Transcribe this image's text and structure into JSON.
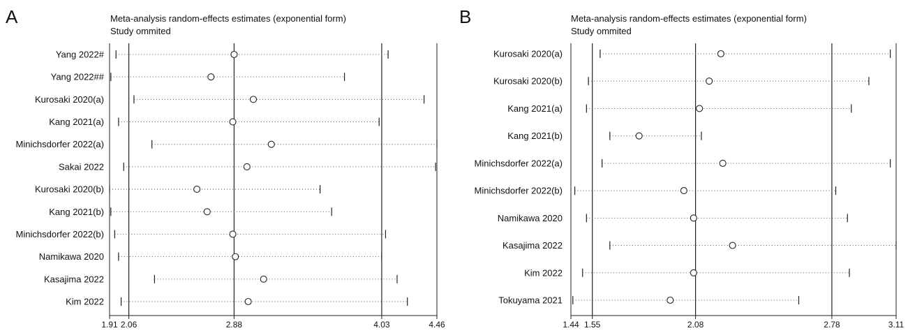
{
  "chart_data": [
    {
      "type": "scatter",
      "panel": "A",
      "title": "Meta-analysis random-effects estimates (exponential form)",
      "subtitle": "Study ommited",
      "ticks": [
        {
          "value": 1.91,
          "label": "1.91"
        },
        {
          "value": 2.06,
          "label": "2.06"
        },
        {
          "value": 2.88,
          "label": "2.88"
        },
        {
          "value": 4.03,
          "label": "4.03"
        },
        {
          "value": 4.46,
          "label": "4.46"
        }
      ],
      "reference_lines": [
        2.06,
        2.88,
        4.03
      ],
      "xlim": [
        1.91,
        4.46
      ],
      "studies": [
        {
          "name": "Yang 2022#",
          "estimate": 2.88,
          "lower": 1.96,
          "upper": 4.08
        },
        {
          "name": "Yang 2022##",
          "estimate": 2.7,
          "lower": 1.92,
          "upper": 3.74
        },
        {
          "name": "Kurosaki 2020(a)",
          "estimate": 3.03,
          "lower": 2.1,
          "upper": 4.36
        },
        {
          "name": "Kang 2021(a)",
          "estimate": 2.87,
          "lower": 1.98,
          "upper": 4.01
        },
        {
          "name": "Minichsdorfer 2022(a)",
          "estimate": 3.17,
          "lower": 2.24,
          "upper": 4.46
        },
        {
          "name": "Sakai 2022",
          "estimate": 2.98,
          "lower": 2.02,
          "upper": 4.45
        },
        {
          "name": "Kurosaki 2020(b)",
          "estimate": 2.59,
          "lower": 1.91,
          "upper": 3.55
        },
        {
          "name": "Kang 2021(b)",
          "estimate": 2.67,
          "lower": 1.92,
          "upper": 3.64
        },
        {
          "name": "Minichsdorfer 2022(b)",
          "estimate": 2.87,
          "lower": 1.95,
          "upper": 4.06
        },
        {
          "name": "Namikawa 2020",
          "estimate": 2.89,
          "lower": 1.98,
          "upper": 4.03
        },
        {
          "name": "Kasajima 2022",
          "estimate": 3.11,
          "lower": 2.26,
          "upper": 4.15
        },
        {
          "name": "Kim 2022",
          "estimate": 2.99,
          "lower": 2.0,
          "upper": 4.23
        }
      ]
    },
    {
      "type": "scatter",
      "panel": "B",
      "title": "Meta-analysis random-effects estimates (exponential form)",
      "subtitle": "Study ommited",
      "ticks": [
        {
          "value": 1.44,
          "label": "1.44"
        },
        {
          "value": 1.55,
          "label": "1.55"
        },
        {
          "value": 2.08,
          "label": "2.08"
        },
        {
          "value": 2.78,
          "label": "2.78"
        },
        {
          "value": 3.11,
          "label": "3.11"
        }
      ],
      "reference_lines": [
        1.55,
        2.08,
        2.78
      ],
      "xlim": [
        1.44,
        3.11
      ],
      "studies": [
        {
          "name": "Kurosaki 2020(a)",
          "estimate": 2.21,
          "lower": 1.59,
          "upper": 3.08
        },
        {
          "name": "Kurosaki 2020(b)",
          "estimate": 2.15,
          "lower": 1.53,
          "upper": 2.97
        },
        {
          "name": "Kang 2021(a)",
          "estimate": 2.1,
          "lower": 1.52,
          "upper": 2.88
        },
        {
          "name": "Kang 2021(b)",
          "estimate": 1.79,
          "lower": 1.64,
          "upper": 2.11
        },
        {
          "name": "Minichsdorfer 2022(a)",
          "estimate": 2.22,
          "lower": 1.6,
          "upper": 3.08
        },
        {
          "name": "Minichsdorfer 2022(b)",
          "estimate": 2.02,
          "lower": 1.46,
          "upper": 2.8
        },
        {
          "name": "Namikawa 2020",
          "estimate": 2.07,
          "lower": 1.52,
          "upper": 2.86
        },
        {
          "name": "Kasajima 2022",
          "estimate": 2.27,
          "lower": 1.64,
          "upper": 3.11
        },
        {
          "name": "Kim 2022",
          "estimate": 2.07,
          "lower": 1.5,
          "upper": 2.87
        },
        {
          "name": "Tokuyama 2021",
          "estimate": 1.95,
          "lower": 1.45,
          "upper": 2.61
        }
      ]
    }
  ]
}
